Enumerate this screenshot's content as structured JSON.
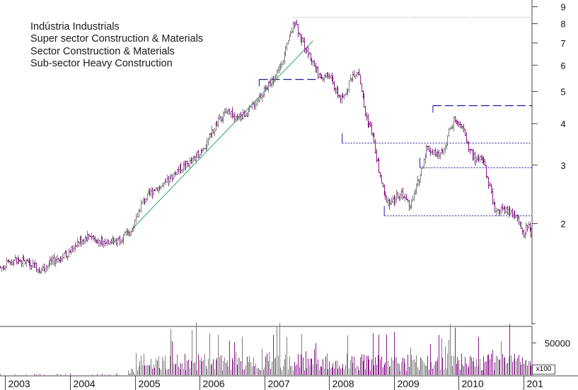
{
  "legend": {
    "lines": [
      "Indústria Industrials",
      "Super sector Construction & Materials",
      "Sector Construction & Materials",
      "Sub-sector Heavy Construction"
    ]
  },
  "chart_data": {
    "type": "candlestick",
    "yscale": "log",
    "ylim": [
      1.0,
      10.0
    ],
    "yticks": [
      "9",
      "8",
      "7",
      "6",
      "5",
      "4",
      "3",
      "2"
    ],
    "ytick_values": [
      9,
      8,
      7,
      6,
      5,
      4,
      3,
      2
    ],
    "xticks": [
      "2003",
      "2004",
      "2005",
      "2006",
      "2007",
      "2008",
      "2009",
      "2010",
      "201"
    ],
    "xlim": [
      2002.92,
      2011.13
    ],
    "colors": {
      "up": "#7f7f7f",
      "down": "#8b1a8b",
      "trend": "#2ca66a",
      "support": "#1c1ca8",
      "high_guide": "#b8b8b8"
    },
    "price_path": [
      [
        2002.92,
        1.47
      ],
      [
        2003.15,
        1.56
      ],
      [
        2003.4,
        1.52
      ],
      [
        2003.55,
        1.45
      ],
      [
        2003.75,
        1.55
      ],
      [
        2003.95,
        1.62
      ],
      [
        2004.1,
        1.75
      ],
      [
        2004.3,
        1.85
      ],
      [
        2004.45,
        1.78
      ],
      [
        2004.7,
        1.77
      ],
      [
        2004.95,
        1.9
      ],
      [
        2005.1,
        2.3
      ],
      [
        2005.3,
        2.55
      ],
      [
        2005.45,
        2.6
      ],
      [
        2005.65,
        2.9
      ],
      [
        2005.9,
        3.1
      ],
      [
        2006.1,
        3.5
      ],
      [
        2006.3,
        4.1
      ],
      [
        2006.45,
        4.4
      ],
      [
        2006.55,
        4.1
      ],
      [
        2006.75,
        4.35
      ],
      [
        2006.95,
        4.9
      ],
      [
        2007.15,
        5.5
      ],
      [
        2007.3,
        6.4
      ],
      [
        2007.4,
        7.4
      ],
      [
        2007.47,
        8.3
      ],
      [
        2007.55,
        7.2
      ],
      [
        2007.7,
        6.4
      ],
      [
        2007.85,
        5.5
      ],
      [
        2008.0,
        5.6
      ],
      [
        2008.1,
        5.0
      ],
      [
        2008.2,
        4.7
      ],
      [
        2008.35,
        5.6
      ],
      [
        2008.45,
        5.8
      ],
      [
        2008.55,
        4.3
      ],
      [
        2008.65,
        3.8
      ],
      [
        2008.75,
        3.0
      ],
      [
        2008.85,
        2.4
      ],
      [
        2008.95,
        2.3
      ],
      [
        2009.1,
        2.5
      ],
      [
        2009.25,
        2.25
      ],
      [
        2009.4,
        2.8
      ],
      [
        2009.5,
        3.4
      ],
      [
        2009.65,
        3.2
      ],
      [
        2009.75,
        3.3
      ],
      [
        2009.85,
        3.8
      ],
      [
        2009.95,
        4.2
      ],
      [
        2010.05,
        3.9
      ],
      [
        2010.15,
        3.4
      ],
      [
        2010.25,
        3.1
      ],
      [
        2010.35,
        3.2
      ],
      [
        2010.45,
        2.7
      ],
      [
        2010.55,
        2.2
      ],
      [
        2010.7,
        2.2
      ],
      [
        2010.85,
        2.15
      ],
      [
        2010.95,
        1.95
      ],
      [
        2011.0,
        1.8
      ],
      [
        2011.05,
        2.0
      ],
      [
        2011.13,
        1.85
      ]
    ],
    "support_lines": [
      {
        "x": [
          2006.92,
          2007.83
        ],
        "y": 5.45,
        "style": "dashed"
      },
      {
        "x": [
          2009.6,
          2011.13
        ],
        "y": 4.55,
        "style": "dashed"
      },
      {
        "x": [
          2008.2,
          2011.13
        ],
        "y": 3.5,
        "style": "dotted"
      },
      {
        "x": [
          2009.4,
          2011.13
        ],
        "y": 2.95,
        "style": "dotted"
      },
      {
        "x": [
          2008.85,
          2011.13
        ],
        "y": 2.12,
        "style": "dotted"
      },
      {
        "x": [
          2007.45,
          2011.13
        ],
        "y": 8.4,
        "style": "dotted"
      }
    ],
    "trendline": {
      "x": [
        2004.95,
        2007.75
      ],
      "y": [
        1.92,
        7.1
      ]
    },
    "volume": {
      "yticks": [
        "50000"
      ],
      "ytick_values": [
        50000
      ],
      "ylim": [
        0,
        75000
      ],
      "unit": "x100"
    }
  }
}
